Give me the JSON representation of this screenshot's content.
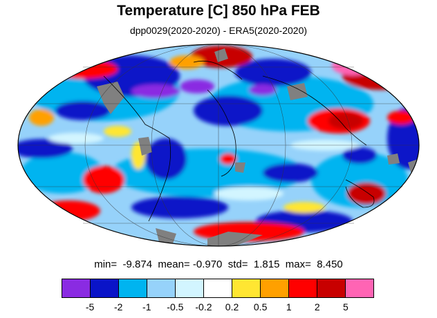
{
  "title": "Temperature [C] 850 hPa FEB",
  "subtitle": "dpp0029(2020-2020) - ERA5(2020-2020)",
  "stats": {
    "min_label": "min=",
    "min": "-9.874",
    "mean_label": "mean=",
    "mean": "-0.970",
    "std_label": "std=",
    "std": "1.815",
    "max_label": "max=",
    "max": "8.450"
  },
  "map": {
    "projection": "mollweide",
    "missing_color": "#808080",
    "coastline_color": "#000000"
  },
  "colorbar": {
    "colors": [
      "#8a2be2",
      "#0a14c8",
      "#00b4f0",
      "#96d2fa",
      "#d2f5ff",
      "#ffffff",
      "#ffe632",
      "#ffa000",
      "#ff0000",
      "#c80000",
      "#ff64b4"
    ],
    "labels": [
      "-5",
      "-2",
      "-1",
      "-0.5",
      "-0.2",
      "0.2",
      "0.5",
      "1",
      "2",
      "5"
    ]
  }
}
